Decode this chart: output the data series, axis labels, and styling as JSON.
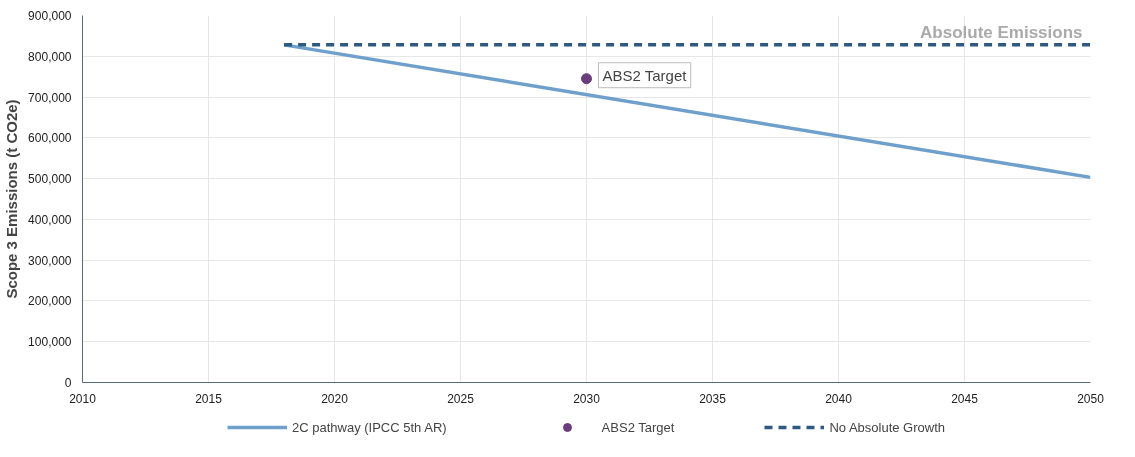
{
  "chart_data": {
    "type": "line",
    "ylabel": "Scope 3 Emissions (t CO2e)",
    "xlim": [
      2010,
      2050
    ],
    "xticks": [
      2010,
      2015,
      2020,
      2025,
      2030,
      2035,
      2040,
      2045,
      2050
    ],
    "ylim": [
      0,
      900000
    ],
    "yticks": [
      {
        "value": 0,
        "label": "0"
      },
      {
        "value": 100000,
        "label": "100,000"
      },
      {
        "value": 200000,
        "label": "200,000"
      },
      {
        "value": 300000,
        "label": "300,000"
      },
      {
        "value": 400000,
        "label": "400,000"
      },
      {
        "value": 500000,
        "label": "500,000"
      },
      {
        "value": 600000,
        "label": "600,000"
      },
      {
        "value": 700000,
        "label": "700,000"
      },
      {
        "value": 800000,
        "label": "800,000"
      },
      {
        "value": 900000,
        "label": "900,000"
      }
    ],
    "grid": true,
    "legend": "bottom",
    "series": [
      {
        "name": "2C pathway (IPCC 5th AR)",
        "color": "#6fa0cc",
        "line_style": "solid",
        "x": [
          2018,
          2050
        ],
        "values": [
          828000,
          503000
        ]
      },
      {
        "name": "ABS2 Target",
        "color": "#6b3d7a",
        "marker": "circle",
        "type": "scatter",
        "x": [
          2030
        ],
        "values": [
          745000
        ]
      },
      {
        "name": "No Absolute Growth",
        "color": "#2e5a80",
        "line_style": "dashed",
        "x": [
          2018,
          2050
        ],
        "values": [
          828000,
          828000
        ]
      }
    ],
    "annotations": [
      "Absolute Emissions",
      {
        "text": "ABS2 Target",
        "x": 2030,
        "y": 745000
      }
    ]
  }
}
